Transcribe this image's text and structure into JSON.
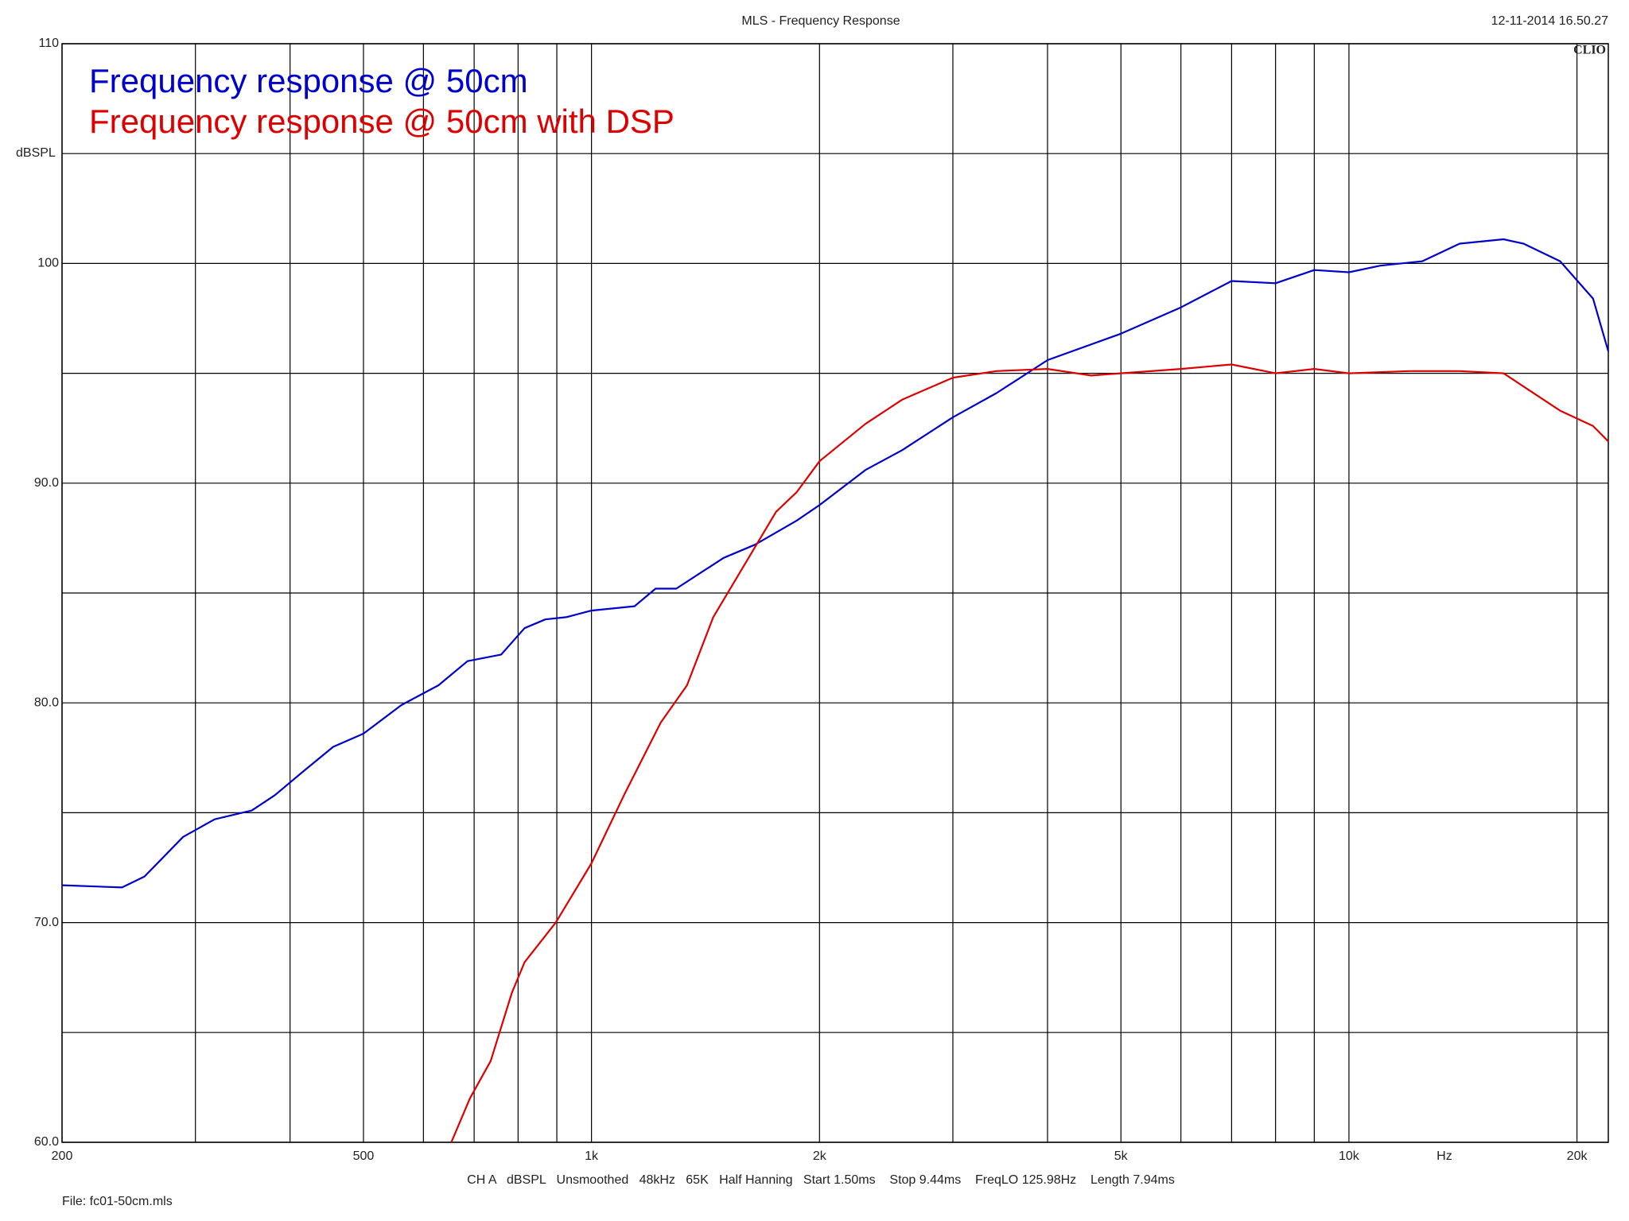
{
  "chart_data": {
    "type": "line",
    "title": "MLS - Frequency Response",
    "timestamp": "12-11-2014 16.50.27",
    "brand": "CLIO",
    "y_label": "dBSPL",
    "x_label": "Hz",
    "settings_line": "CH A   dBSPL   Unsmoothed   48kHz   65K   Half Hanning   Start 1.50ms    Stop 9.44ms    FreqLO 125.98Hz    Length 7.94ms",
    "file": "File: fc01-50cm.mls",
    "log_x": true,
    "grid": true,
    "legend": "upper left",
    "xlim": [
      200,
      22000
    ],
    "ylim": [
      60,
      110
    ],
    "xticks": [
      200,
      500,
      {
        "value": 1000,
        "label": "1k"
      },
      {
        "value": 2000,
        "label": "2k"
      },
      {
        "value": 5000,
        "label": "5k"
      },
      {
        "value": 10000,
        "label": "10k"
      },
      {
        "value": 20000,
        "label": "20k"
      }
    ],
    "xgrid_minor": [
      300,
      400,
      600,
      700,
      800,
      900,
      3000,
      4000,
      6000,
      7000,
      8000,
      9000
    ],
    "yticks": [
      {
        "value": 60,
        "label": "60.0"
      },
      {
        "value": 70,
        "label": "70.0"
      },
      {
        "value": 80,
        "label": "80.0"
      },
      {
        "value": 90,
        "label": "90.0"
      },
      100,
      110
    ],
    "ygrid_minor": [
      65,
      75,
      85,
      95,
      105
    ],
    "series": [
      {
        "name": "Frequency response @ 50cm",
        "color": "#0000cc",
        "x": [
          200,
          240,
          257,
          289,
          318,
          356,
          382,
          417,
          456,
          500,
          561,
          628,
          686,
          760,
          816,
          869,
          926,
          1000,
          1140,
          1215,
          1294,
          1494,
          1644,
          1867,
          2000,
          2300,
          2571,
          3000,
          3425,
          4000,
          5000,
          6000,
          7000,
          8000,
          9000,
          10000,
          11000,
          12500,
          14000,
          16000,
          17000,
          19000,
          21000,
          22000
        ],
        "values": [
          71.7,
          71.6,
          72.1,
          73.9,
          74.7,
          75.1,
          75.8,
          76.9,
          78.0,
          78.6,
          79.9,
          80.8,
          81.9,
          82.2,
          83.4,
          83.8,
          83.9,
          84.2,
          84.4,
          85.2,
          85.2,
          86.6,
          87.2,
          88.3,
          89.0,
          90.6,
          91.5,
          93.0,
          94.1,
          95.6,
          96.8,
          98.0,
          99.2,
          99.1,
          99.7,
          99.6,
          99.9,
          100.1,
          100.9,
          101.1,
          100.9,
          100.1,
          98.4,
          96.0
        ]
      },
      {
        "name": "Frequency response @ 50cm with DSP",
        "color": "#dd0000",
        "x": [
          653,
          691,
          736,
          785,
          816,
          897,
          1000,
          1104,
          1234,
          1337,
          1448,
          1593,
          1753,
          1867,
          2000,
          2300,
          2571,
          3000,
          3425,
          4000,
          4567,
          5000,
          6000,
          7000,
          8000,
          9000,
          10000,
          12000,
          14000,
          16000,
          17000,
          19000,
          21000,
          22000
        ],
        "values": [
          60.0,
          62.0,
          63.7,
          66.8,
          68.2,
          70.0,
          72.7,
          75.8,
          79.1,
          80.8,
          83.9,
          86.3,
          88.7,
          89.6,
          91.0,
          92.7,
          93.8,
          94.8,
          95.1,
          95.2,
          94.9,
          95.0,
          95.2,
          95.4,
          95.0,
          95.2,
          95.0,
          95.1,
          95.1,
          95.0,
          94.4,
          93.3,
          92.6,
          91.9
        ]
      }
    ]
  }
}
